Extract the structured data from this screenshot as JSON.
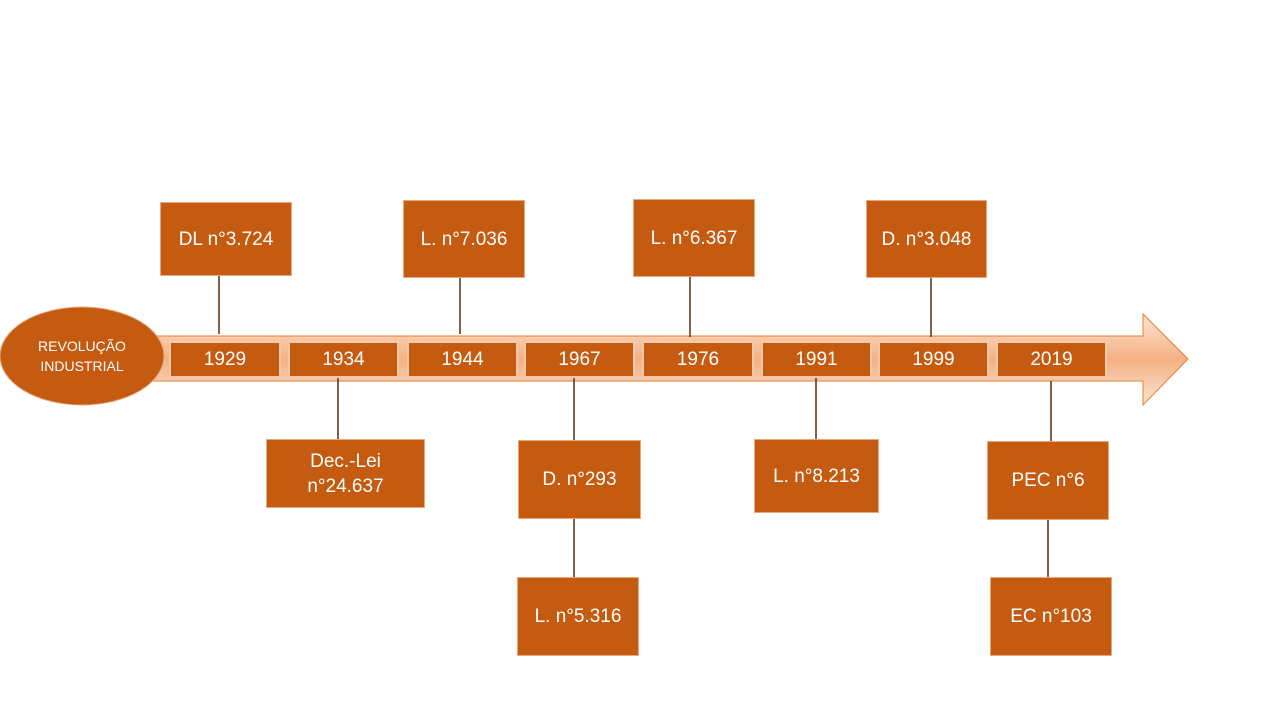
{
  "timeline": {
    "start": {
      "lines": [
        "REVOLUÇÃO",
        "INDUSTRIAL"
      ]
    },
    "years": [
      "1929",
      "1934",
      "1944",
      "1967",
      "1976",
      "1991",
      "1999",
      "2019"
    ],
    "above": [
      {
        "label": "DL n°3.724"
      },
      {
        "label": "L. n°7.036"
      },
      {
        "label": "L. n°6.367"
      },
      {
        "label": "D. n°3.048"
      }
    ],
    "below": [
      {
        "lines": [
          "Dec.-Lei",
          "n°24.637"
        ]
      },
      {
        "label": "D. n°293",
        "next": "L. n°5.316"
      },
      {
        "label": "L. n°8.213"
      },
      {
        "label": "PEC n°6",
        "next": "EC n°103"
      }
    ]
  }
}
